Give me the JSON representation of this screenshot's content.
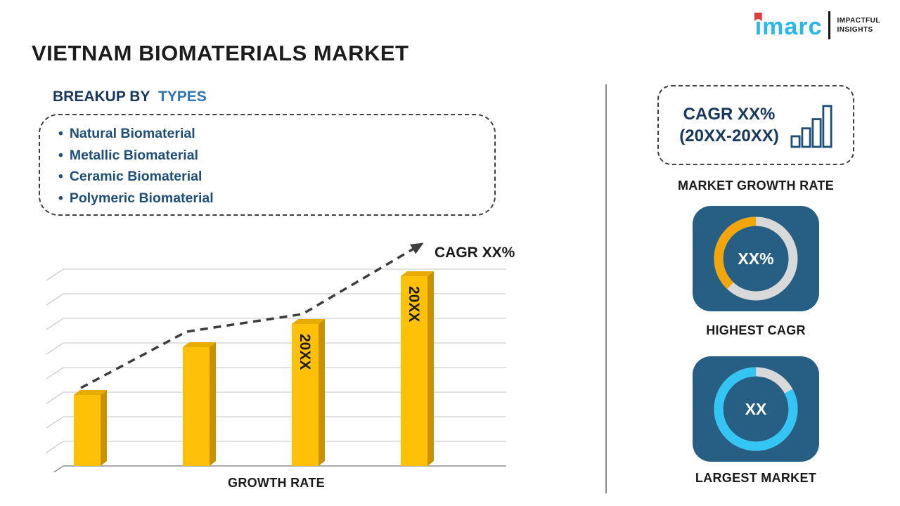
{
  "header": {
    "title": "VIETNAM BIOMATERIALS MARKET",
    "logo": {
      "brand": "imarc",
      "tagline1": "IMPACTFUL",
      "tagline2": "INSIGHTS"
    }
  },
  "breakup": {
    "heading_prefix": "BREAKUP BY",
    "heading_highlight": "TYPES",
    "items": [
      "Natural Biomaterial",
      "Metallic Biomaterial",
      "Ceramic Biomaterial",
      "Polymeric Biomaterial"
    ]
  },
  "chart_data": {
    "type": "bar",
    "categories": [
      "",
      "",
      "20XX",
      "20XX"
    ],
    "values": [
      28,
      47,
      56,
      75
    ],
    "ylim": [
      0,
      100
    ],
    "grid": true,
    "title": "",
    "xlabel": "GROWTH RATE",
    "ylabel": "",
    "annotation": "CAGR XX%",
    "trend": "increasing-dashed-arrow",
    "bar_color": "#FFC008",
    "bar_side_color": "#C89200",
    "bar_top_color": "#E8AC00"
  },
  "sidebar": {
    "cagr_box": {
      "line1": "CAGR XX%",
      "line2": "(20XX-20XX)"
    },
    "market_growth_rate_label": "MARKET GROWTH RATE",
    "highest_cagr": {
      "value": "XX%",
      "label": "HIGHEST CAGR",
      "ring_color": "#F2A60A",
      "ring_pct": 38
    },
    "largest_market": {
      "value": "XX",
      "label": "LARGEST MARKET",
      "ring_color": "#33C5F3",
      "ring_pct": 83
    }
  },
  "colors": {
    "title_ink": "#1C1C1C",
    "navy": "#17375E",
    "accent_blue": "#2E75B6",
    "bullet_blue": "#1F4E79",
    "card_bg": "#275E84",
    "logo_cyan": "#29B7E8",
    "logo_red": "#E23B3E",
    "divider_gray": "#8A8A8A"
  }
}
